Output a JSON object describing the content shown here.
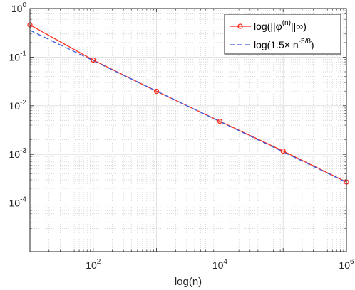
{
  "chart_data": {
    "type": "line",
    "xscale": "log",
    "yscale": "log",
    "xlim": [
      10,
      1000000
    ],
    "ylim": [
      1e-05,
      1
    ],
    "xlabel": "log(n)",
    "ylabel": "",
    "grid": true,
    "minor_grid": true,
    "legend_position": "top-right",
    "x_ticks": [
      {
        "base": "10",
        "exp": "2",
        "value": 100
      },
      {
        "base": "10",
        "exp": "4",
        "value": 10000
      },
      {
        "base": "10",
        "exp": "6",
        "value": 1000000
      }
    ],
    "y_ticks": [
      {
        "base": "10",
        "exp": "0",
        "value": 1
      },
      {
        "base": "10",
        "exp": "-1",
        "value": 0.1
      },
      {
        "base": "10",
        "exp": "-2",
        "value": 0.01
      },
      {
        "base": "10",
        "exp": "-3",
        "value": 0.001
      },
      {
        "base": "10",
        "exp": "-4",
        "value": 0.0001
      }
    ],
    "series": [
      {
        "name_main": "log(||φ",
        "name_sup": "(n)",
        "name_tail": "||∞)",
        "color": "#ff2a1a",
        "style": "solid",
        "marker": "circle",
        "x": [
          10,
          100,
          1000,
          10000,
          100000,
          1000000
        ],
        "y": [
          0.46,
          0.087,
          0.0198,
          0.0048,
          0.00117,
          0.00027
        ]
      },
      {
        "name_main": "log(1.5× n",
        "name_sup": "-5/8",
        "name_tail": ")",
        "color": "#3b5ce0",
        "style": "dashed",
        "marker": "none",
        "x": [
          10,
          1000000
        ],
        "y": [
          0.356,
          0.000267
        ]
      }
    ]
  }
}
